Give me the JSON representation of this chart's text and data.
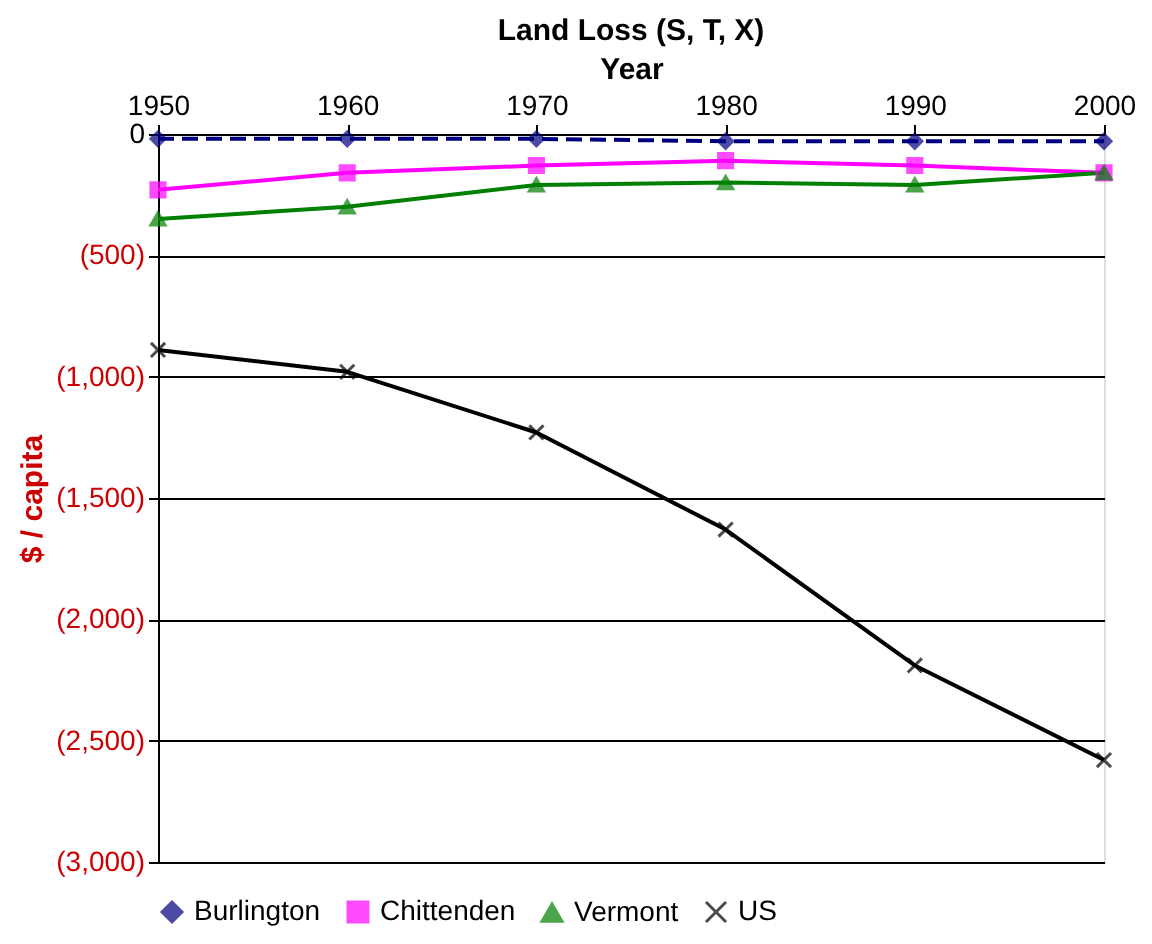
{
  "chart_data": {
    "type": "line",
    "title": "Land Loss (S, T, X)",
    "xlabel": "Year",
    "ylabel": "$ / capita",
    "x": [
      1950,
      1960,
      1970,
      1980,
      1990,
      2000
    ],
    "series": [
      {
        "name": "Burlington",
        "color": "#000080",
        "marker": "diamond",
        "line_style": "dashed",
        "values": [
          -20,
          -20,
          -20,
          -30,
          -30,
          -30
        ]
      },
      {
        "name": "Chittenden",
        "color": "#ff00ff",
        "marker": "square",
        "line_style": "solid",
        "values": [
          -230,
          -160,
          -130,
          -110,
          -130,
          -160
        ]
      },
      {
        "name": "Vermont",
        "color": "#008000",
        "marker": "triangle",
        "line_style": "solid",
        "values": [
          -350,
          -300,
          -210,
          -200,
          -210,
          -160
        ]
      },
      {
        "name": "US",
        "color": "#000000",
        "marker": "cross",
        "line_style": "solid",
        "values": [
          -890,
          -980,
          -1230,
          -1630,
          -2190,
          -2580
        ]
      }
    ],
    "xlim": [
      1950,
      2000
    ],
    "xticks": [
      1950,
      1960,
      1970,
      1980,
      1990,
      2000
    ],
    "ylim": [
      -3000,
      0
    ],
    "yticks": [
      0,
      {
        "value": -500,
        "label": "(500)"
      },
      {
        "value": -1000,
        "label": "(1,000)"
      },
      {
        "value": -1500,
        "label": "(1,500)"
      },
      {
        "value": -2000,
        "label": "(2,000)"
      },
      {
        "value": -2500,
        "label": "(2,500)"
      },
      {
        "value": -3000,
        "label": "(3,000)"
      }
    ],
    "grid": "y",
    "legend": "bottom"
  }
}
